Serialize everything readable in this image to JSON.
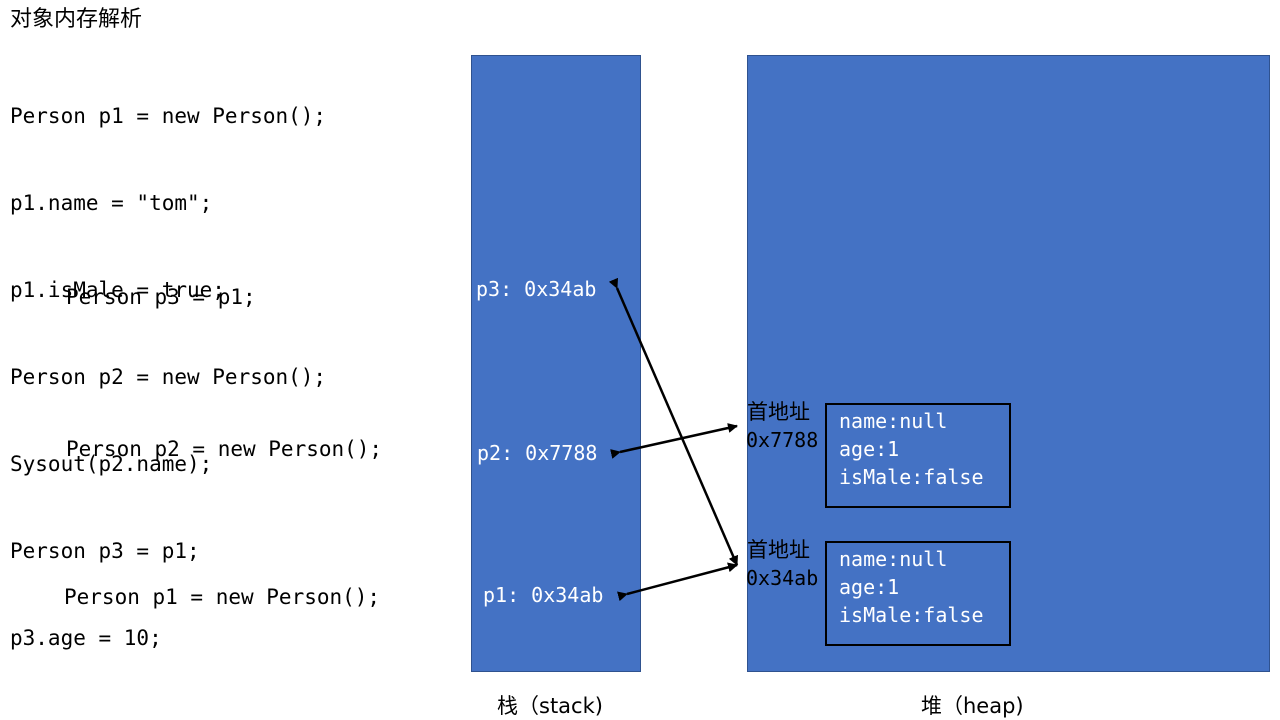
{
  "title": "对象内存解析",
  "code_lines": [
    "Person p1 = new Person();",
    "p1.name = \"tom\";",
    "p1.isMale = true;",
    "Person p2 = new Person();",
    "Sysout(p2.name);",
    "Person p3 = p1;",
    "p3.age = 10;"
  ],
  "statements": {
    "p3": "Person p3 = p1;",
    "p2": "Person p2 = new Person();",
    "p1": "Person p1 = new Person();"
  },
  "stack": {
    "caption": "栈（stack)",
    "vars": {
      "p3": "p3: 0x34ab",
      "p2": "p2: 0x7788",
      "p1": "p1: 0x34ab"
    }
  },
  "heap": {
    "caption": "堆（heap)",
    "objects": [
      {
        "addr_label": "首地址",
        "addr": "0x7788",
        "fields": [
          "name:null",
          "age:1",
          "isMale:false"
        ]
      },
      {
        "addr_label": "首地址",
        "addr": "0x34ab",
        "fields": [
          "name:null",
          "age:1",
          "isMale:false"
        ]
      }
    ]
  },
  "colors": {
    "region_fill": "#4472c4",
    "region_border": "#2f528f",
    "text_on_region": "#ffffff",
    "arrow": "#000000"
  }
}
